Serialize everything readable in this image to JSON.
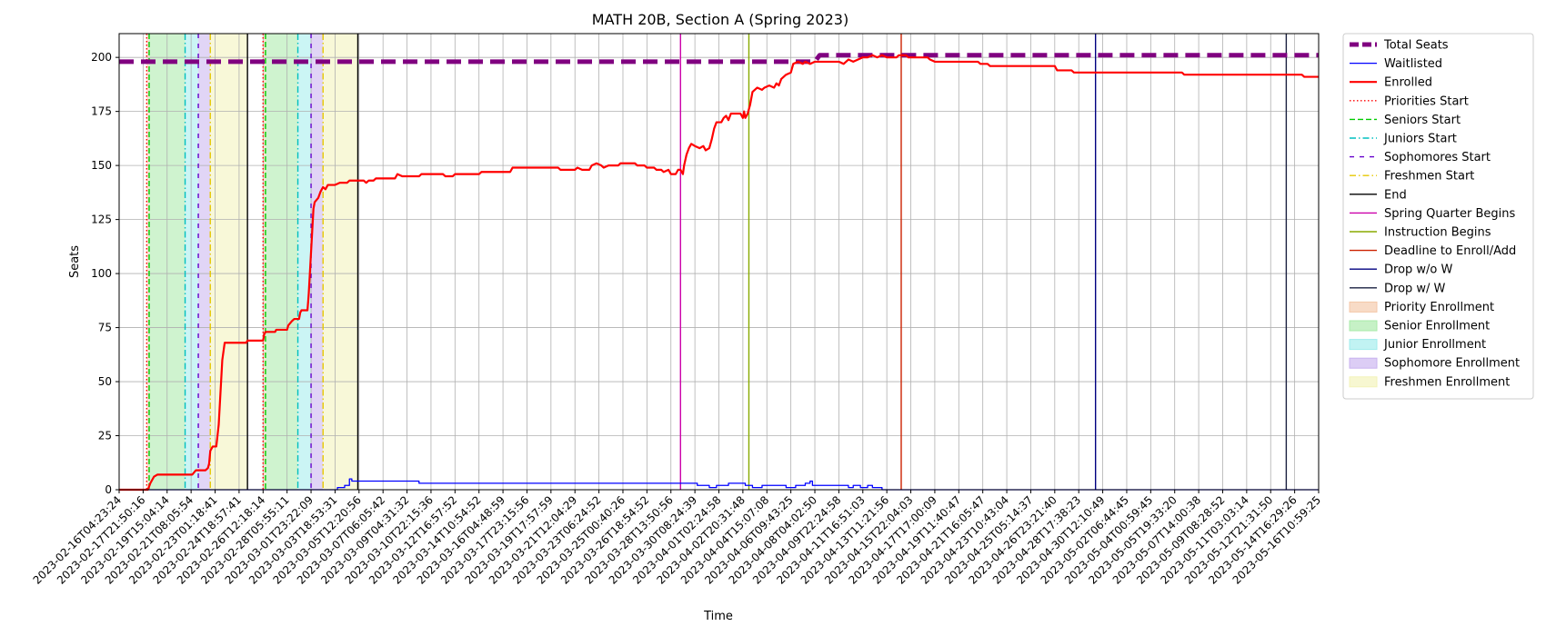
{
  "chart_data": {
    "type": "line",
    "title": "MATH 20B, Section A (Spring 2023)",
    "xlabel": "Time",
    "ylabel": "Seats",
    "ylim": [
      0,
      211
    ],
    "y_ticks": [
      0,
      25,
      50,
      75,
      100,
      125,
      150,
      175,
      200
    ],
    "grid": true,
    "legend_position": "outside-right",
    "x_start": "2023-02-16T04:23:24",
    "x_end": "2023-05-16T10:59:25",
    "x_tick_labels": [
      "2023-02-16T04:23:24",
      "2023-02-17T21:50:16",
      "2023-02-19T15:04:14",
      "2023-02-21T08:05:54",
      "2023-02-23T01:18:41",
      "2023-02-24T18:57:41",
      "2023-02-26T12:18:14",
      "2023-02-28T05:55:11",
      "2023-03-01T23:22:09",
      "2023-03-03T18:53:31",
      "2023-03-05T12:20:56",
      "2023-03-07T06:05:42",
      "2023-03-09T04:31:32",
      "2023-03-10T22:15:36",
      "2023-03-12T16:57:52",
      "2023-03-14T10:54:52",
      "2023-03-16T04:48:59",
      "2023-03-17T23:15:56",
      "2023-03-19T17:57:59",
      "2023-03-21T12:04:29",
      "2023-03-23T06:24:52",
      "2023-03-25T00:40:26",
      "2023-03-26T18:54:52",
      "2023-03-28T13:50:56",
      "2023-03-30T08:24:39",
      "2023-04-01T02:24:58",
      "2023-04-02T20:31:48",
      "2023-04-04T15:07:08",
      "2023-04-06T09:43:25",
      "2023-04-08T04:02:50",
      "2023-04-09T22:24:58",
      "2023-04-11T16:51:03",
      "2023-04-13T11:21:56",
      "2023-04-15T22:04:03",
      "2023-04-17T17:00:09",
      "2023-04-19T11:40:47",
      "2023-04-21T16:05:47",
      "2023-04-23T10:43:04",
      "2023-04-25T05:14:37",
      "2023-04-26T23:21:40",
      "2023-04-28T17:38:23",
      "2023-04-30T12:10:49",
      "2023-05-02T06:44:45",
      "2023-05-04T00:59:45",
      "2023-05-05T19:33:20",
      "2023-05-07T14:00:38",
      "2023-05-09T08:28:52",
      "2023-05-11T03:03:14",
      "2023-05-12T21:31:50",
      "2023-05-14T16:29:26",
      "2023-05-16T10:59:25"
    ],
    "series": [
      {
        "name": "Total Seats",
        "color": "#800080",
        "style": "dashed",
        "points": [
          [
            0,
            198
          ],
          [
            29,
            198
          ],
          [
            29.2,
            201
          ],
          [
            50,
            201
          ]
        ]
      },
      {
        "name": "Waitlisted",
        "color": "#0000ff",
        "style": "solid",
        "points": [
          [
            0,
            0
          ],
          [
            9.1,
            0
          ],
          [
            9.1,
            1
          ],
          [
            9.4,
            1
          ],
          [
            9.4,
            2
          ],
          [
            9.6,
            2
          ],
          [
            9.6,
            5
          ],
          [
            9.7,
            5
          ],
          [
            9.7,
            4
          ],
          [
            12.5,
            4
          ],
          [
            12.5,
            3
          ],
          [
            24.1,
            3
          ],
          [
            24.1,
            2
          ],
          [
            24.6,
            2
          ],
          [
            24.6,
            1
          ],
          [
            24.9,
            1
          ],
          [
            24.9,
            2
          ],
          [
            25.4,
            2
          ],
          [
            25.4,
            3
          ],
          [
            26.1,
            3
          ],
          [
            26.1,
            2
          ],
          [
            26.4,
            2
          ],
          [
            26.4,
            1
          ],
          [
            26.8,
            1
          ],
          [
            26.8,
            2
          ],
          [
            27.8,
            2
          ],
          [
            27.8,
            1
          ],
          [
            28.2,
            1
          ],
          [
            28.2,
            2
          ],
          [
            28.6,
            2
          ],
          [
            28.6,
            3
          ],
          [
            28.8,
            3
          ],
          [
            28.8,
            4
          ],
          [
            28.9,
            4
          ],
          [
            28.9,
            2
          ],
          [
            30.4,
            2
          ],
          [
            30.4,
            1
          ],
          [
            30.6,
            1
          ],
          [
            30.6,
            2
          ],
          [
            30.9,
            2
          ],
          [
            30.9,
            1
          ],
          [
            31.2,
            1
          ],
          [
            31.2,
            2
          ],
          [
            31.4,
            2
          ],
          [
            31.4,
            1
          ],
          [
            31.8,
            1
          ],
          [
            31.8,
            0
          ],
          [
            50,
            0
          ]
        ]
      },
      {
        "name": "Enrolled",
        "color": "#ff0000",
        "style": "solid",
        "points": [
          [
            0,
            0
          ],
          [
            1.2,
            0
          ],
          [
            1.3,
            3
          ],
          [
            1.45,
            6
          ],
          [
            1.6,
            7
          ],
          [
            2.9,
            7
          ],
          [
            3.05,
            7
          ],
          [
            3.2,
            9
          ],
          [
            3.6,
            9
          ],
          [
            3.7,
            10
          ],
          [
            3.75,
            12
          ],
          [
            3.8,
            18
          ],
          [
            3.9,
            20
          ],
          [
            4.05,
            20
          ],
          [
            4.15,
            30
          ],
          [
            4.2,
            40
          ],
          [
            4.25,
            50
          ],
          [
            4.3,
            60
          ],
          [
            4.4,
            68
          ],
          [
            5.3,
            68
          ],
          [
            5.35,
            69
          ],
          [
            6.0,
            69
          ],
          [
            6.05,
            72
          ],
          [
            6.1,
            73
          ],
          [
            6.5,
            73
          ],
          [
            6.55,
            74
          ],
          [
            7.0,
            74
          ],
          [
            7.05,
            76
          ],
          [
            7.2,
            78
          ],
          [
            7.3,
            79
          ],
          [
            7.5,
            79
          ],
          [
            7.55,
            82
          ],
          [
            7.6,
            83
          ],
          [
            7.85,
            83
          ],
          [
            7.9,
            90
          ],
          [
            8.0,
            110
          ],
          [
            8.05,
            120
          ],
          [
            8.1,
            130
          ],
          [
            8.15,
            133
          ],
          [
            8.3,
            135
          ],
          [
            8.4,
            138
          ],
          [
            8.5,
            140
          ],
          [
            8.6,
            139
          ],
          [
            8.7,
            141
          ],
          [
            9.0,
            141
          ],
          [
            9.2,
            142
          ],
          [
            9.5,
            142
          ],
          [
            9.6,
            143
          ],
          [
            10.2,
            143
          ],
          [
            10.3,
            142
          ],
          [
            10.4,
            143
          ],
          [
            10.6,
            143
          ],
          [
            10.7,
            144
          ],
          [
            11.5,
            144
          ],
          [
            11.6,
            146
          ],
          [
            11.8,
            145
          ],
          [
            12.5,
            145
          ],
          [
            12.6,
            146
          ],
          [
            13.5,
            146
          ],
          [
            13.6,
            145
          ],
          [
            13.9,
            145
          ],
          [
            14.0,
            146
          ],
          [
            15.0,
            146
          ],
          [
            15.1,
            147
          ],
          [
            16.3,
            147
          ],
          [
            16.4,
            149
          ],
          [
            18.3,
            149
          ],
          [
            18.4,
            148
          ],
          [
            19.0,
            148
          ],
          [
            19.1,
            149
          ],
          [
            19.3,
            148
          ],
          [
            19.6,
            148
          ],
          [
            19.7,
            150
          ],
          [
            19.9,
            151
          ],
          [
            20.1,
            150
          ],
          [
            20.2,
            149
          ],
          [
            20.4,
            150
          ],
          [
            20.8,
            150
          ],
          [
            20.9,
            151
          ],
          [
            21.5,
            151
          ],
          [
            21.6,
            150
          ],
          [
            21.9,
            150
          ],
          [
            22.0,
            149
          ],
          [
            22.3,
            149
          ],
          [
            22.4,
            148
          ],
          [
            22.6,
            148
          ],
          [
            22.7,
            147
          ],
          [
            22.9,
            148
          ],
          [
            23.0,
            146
          ],
          [
            23.2,
            146
          ],
          [
            23.3,
            148
          ],
          [
            23.4,
            148
          ],
          [
            23.5,
            146
          ],
          [
            23.55,
            150
          ],
          [
            23.65,
            155
          ],
          [
            23.75,
            158
          ],
          [
            23.85,
            160
          ],
          [
            24.0,
            159
          ],
          [
            24.2,
            158
          ],
          [
            24.35,
            159
          ],
          [
            24.45,
            157
          ],
          [
            24.6,
            158
          ],
          [
            24.7,
            162
          ],
          [
            24.8,
            167
          ],
          [
            24.9,
            170
          ],
          [
            25.1,
            170
          ],
          [
            25.2,
            172
          ],
          [
            25.3,
            173
          ],
          [
            25.4,
            171
          ],
          [
            25.5,
            174
          ],
          [
            25.9,
            174
          ],
          [
            26.0,
            172
          ],
          [
            26.05,
            175
          ],
          [
            26.1,
            172
          ],
          [
            26.2,
            174
          ],
          [
            26.3,
            178
          ],
          [
            26.4,
            184
          ],
          [
            26.6,
            186
          ],
          [
            26.8,
            185
          ],
          [
            26.9,
            186
          ],
          [
            27.1,
            187
          ],
          [
            27.3,
            186
          ],
          [
            27.4,
            188
          ],
          [
            27.5,
            187
          ],
          [
            27.6,
            190
          ],
          [
            27.8,
            192
          ],
          [
            28.0,
            193
          ],
          [
            28.1,
            197
          ],
          [
            28.3,
            198
          ],
          [
            28.5,
            197
          ],
          [
            28.6,
            198
          ],
          [
            28.8,
            197
          ],
          [
            29.0,
            198
          ],
          [
            30.0,
            198
          ],
          [
            30.2,
            197
          ],
          [
            30.4,
            199
          ],
          [
            30.6,
            198
          ],
          [
            30.8,
            199
          ],
          [
            31.0,
            200
          ],
          [
            31.2,
            200
          ],
          [
            31.4,
            201
          ],
          [
            31.6,
            200
          ],
          [
            31.8,
            201
          ],
          [
            32.0,
            200
          ],
          [
            32.4,
            200
          ],
          [
            32.5,
            201
          ],
          [
            32.8,
            201
          ],
          [
            32.9,
            200
          ],
          [
            33.7,
            200
          ],
          [
            33.8,
            199
          ],
          [
            34.0,
            198
          ],
          [
            35.8,
            198
          ],
          [
            35.9,
            197
          ],
          [
            36.2,
            197
          ],
          [
            36.3,
            196
          ],
          [
            39.0,
            196
          ],
          [
            39.1,
            194
          ],
          [
            39.7,
            194
          ],
          [
            39.8,
            193
          ],
          [
            44.3,
            193
          ],
          [
            44.4,
            192
          ],
          [
            49.3,
            192
          ],
          [
            49.4,
            191
          ],
          [
            50,
            191
          ]
        ]
      }
    ],
    "event_lines": [
      {
        "name": "Priorities Start",
        "color": "#ff0000",
        "style": "dotted",
        "x": [
          1.15,
          6.0
        ]
      },
      {
        "name": "Seniors Start",
        "color": "#00cc00",
        "style": "dashed",
        "x": [
          1.25,
          6.1
        ]
      },
      {
        "name": "Juniors Start",
        "color": "#00bfbf",
        "style": "dashdot",
        "x": [
          2.75,
          7.45
        ]
      },
      {
        "name": "Sophomores Start",
        "color": "#6600cc",
        "style": "loosedash",
        "x": [
          3.3,
          8.0
        ]
      },
      {
        "name": "Freshmen Start",
        "color": "#e6c800",
        "style": "dashdot",
        "x": [
          3.8,
          8.5
        ]
      },
      {
        "name": "End",
        "color": "#000000",
        "style": "solid",
        "x": [
          5.35,
          9.95
        ]
      },
      {
        "name": "Spring Quarter Begins",
        "color": "#cc00aa",
        "style": "solid",
        "x": [
          23.4
        ]
      },
      {
        "name": "Instruction Begins",
        "color": "#88aa00",
        "style": "solid",
        "x": [
          26.25
        ]
      },
      {
        "name": "Deadline to Enroll/Add",
        "color": "#cc2200",
        "style": "solid",
        "x": [
          32.6
        ]
      },
      {
        "name": "Drop w/o W",
        "color": "#000080",
        "style": "solid",
        "x": [
          40.7
        ]
      },
      {
        "name": "Drop w/ W",
        "color": "#1a2040",
        "style": "solid",
        "x": [
          48.65
        ]
      }
    ],
    "bands": [
      {
        "name": "Priority Enrollment",
        "color": "#f4c7a8",
        "ranges": [
          [
            1.15,
            1.25
          ],
          [
            6.0,
            6.1
          ]
        ]
      },
      {
        "name": "Senior Enrollment",
        "color": "#a8eaa8",
        "ranges": [
          [
            1.25,
            2.75
          ],
          [
            6.1,
            7.45
          ]
        ]
      },
      {
        "name": "Junior Enrollment",
        "color": "#a0ecec",
        "ranges": [
          [
            2.75,
            3.3
          ],
          [
            7.45,
            8.0
          ]
        ]
      },
      {
        "name": "Sophomore Enrollment",
        "color": "#c9b2ef",
        "ranges": [
          [
            3.3,
            3.8
          ],
          [
            8.0,
            8.5
          ]
        ]
      },
      {
        "name": "Freshmen Enrollment",
        "color": "#f3f3b8",
        "ranges": [
          [
            3.8,
            5.35
          ],
          [
            8.5,
            9.95
          ]
        ]
      }
    ]
  }
}
